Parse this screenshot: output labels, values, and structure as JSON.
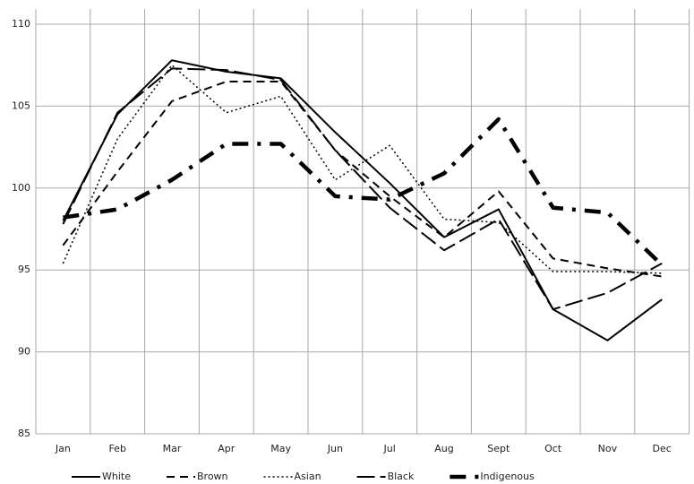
{
  "chart_data": {
    "type": "line",
    "categories": [
      "Jan",
      "Feb",
      "Mar",
      "Apr",
      "May",
      "Jun",
      "Jul",
      "Aug",
      "Sept",
      "Oct",
      "Nov",
      "Dec"
    ],
    "series": [
      {
        "name": "White",
        "color": "#000000",
        "line_style": "solid",
        "values": [
          98.0,
          104.5,
          107.8,
          107.1,
          106.7,
          103.4,
          100.3,
          97.0,
          98.7,
          92.6,
          90.7,
          93.2
        ]
      },
      {
        "name": "Brown",
        "color": "#000000",
        "line_style": "dashed",
        "values": [
          96.5,
          101.0,
          105.3,
          106.5,
          106.5,
          102.3,
          99.5,
          97.0,
          99.8,
          95.7,
          95.1,
          94.6
        ]
      },
      {
        "name": "Asian",
        "color": "#000000",
        "line_style": "dotted",
        "values": [
          95.4,
          103.0,
          107.5,
          104.6,
          105.6,
          100.5,
          102.6,
          98.1,
          97.9,
          94.9,
          94.9,
          94.8
        ]
      },
      {
        "name": "Black",
        "color": "#000000",
        "line_style": "longdash",
        "values": [
          97.8,
          104.6,
          107.3,
          107.2,
          106.6,
          102.3,
          98.8,
          96.2,
          98.1,
          92.6,
          93.6,
          95.4
        ]
      },
      {
        "name": "Indigenous",
        "color": "#000000",
        "line_style": "thick-dashdot",
        "values": [
          98.2,
          98.7,
          100.5,
          102.7,
          102.7,
          99.5,
          99.3,
          100.9,
          104.2,
          98.8,
          98.5,
          95.3
        ]
      }
    ],
    "ylim": [
      85,
      110
    ],
    "yticks": [
      85,
      90,
      95,
      100,
      105,
      110
    ],
    "grid": true,
    "legend": "bottom"
  }
}
